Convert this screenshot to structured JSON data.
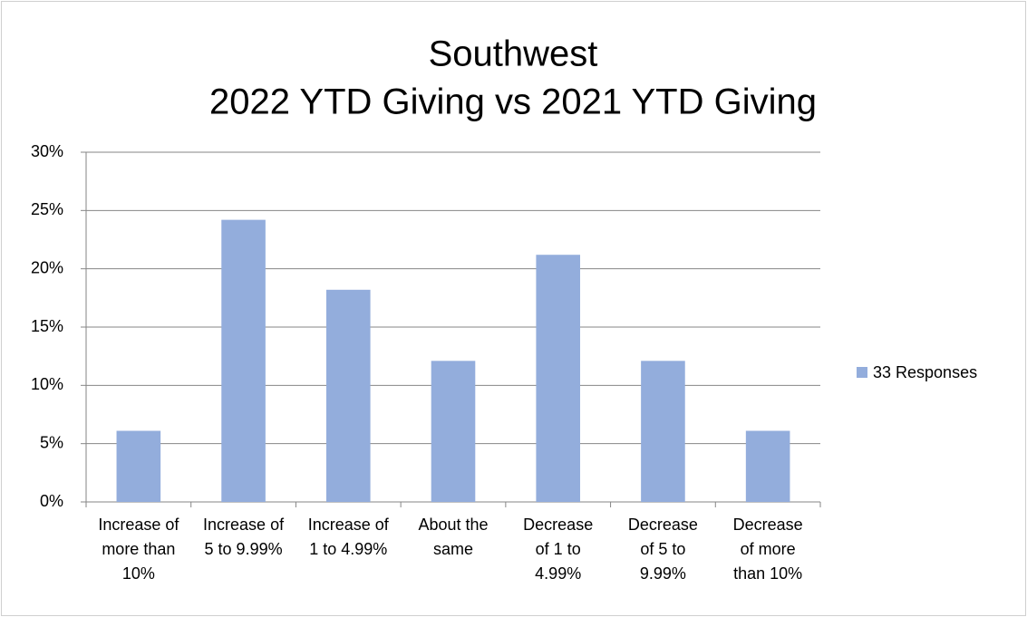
{
  "chart_data": {
    "type": "bar",
    "title": [
      "Southwest",
      "2022 YTD Giving vs 2021 YTD Giving"
    ],
    "categories": [
      "Increase of more than 10%",
      "Increase of 5 to 9.99%",
      "Increase of 1 to 4.99%",
      "About the same",
      "Decrease of 1 to 4.99%",
      "Decrease of 5 to 9.99%",
      "Decrease of more than 10%"
    ],
    "series": [
      {
        "name": "33 Responses",
        "color": "#93addc",
        "values": [
          6.1,
          24.2,
          18.2,
          12.1,
          21.2,
          12.1,
          6.1
        ]
      }
    ],
    "ylim": [
      0,
      30
    ],
    "yticks": [
      {
        "value": 0,
        "label": "0%"
      },
      {
        "value": 5,
        "label": "5%"
      },
      {
        "value": 10,
        "label": "10%"
      },
      {
        "value": 15,
        "label": "15%"
      },
      {
        "value": 20,
        "label": "20%"
      },
      {
        "value": 25,
        "label": "25%"
      },
      {
        "value": 30,
        "label": "30%"
      }
    ],
    "grid": true,
    "legend": "right"
  }
}
